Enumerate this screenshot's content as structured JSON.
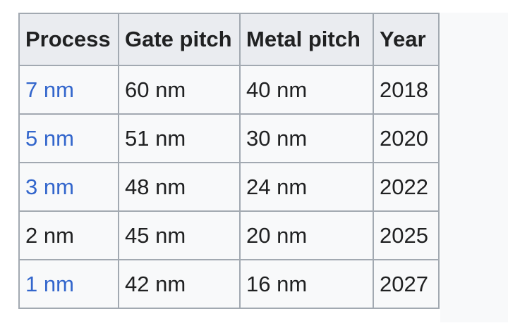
{
  "table": {
    "headers": {
      "process": "Process",
      "gate_pitch": "Gate pitch",
      "metal_pitch": "Metal pitch",
      "year": "Year"
    },
    "rows": [
      {
        "process": "7 nm",
        "process_is_link": true,
        "gate_pitch": "60 nm",
        "metal_pitch": "40 nm",
        "year": "2018"
      },
      {
        "process": "5 nm",
        "process_is_link": true,
        "gate_pitch": "51 nm",
        "metal_pitch": "30 nm",
        "year": "2020"
      },
      {
        "process": "3 nm",
        "process_is_link": true,
        "gate_pitch": "48 nm",
        "metal_pitch": "24 nm",
        "year": "2022"
      },
      {
        "process": "2 nm",
        "process_is_link": false,
        "gate_pitch": "45 nm",
        "metal_pitch": "20 nm",
        "year": "2025"
      },
      {
        "process": "1 nm",
        "process_is_link": true,
        "gate_pitch": "42 nm",
        "metal_pitch": "16 nm",
        "year": "2027"
      }
    ]
  },
  "colors": {
    "link": "#3366cc",
    "header_bg": "#eaecf0",
    "cell_bg": "#f8f9fa",
    "border": "#a2a9b1",
    "text": "#202122"
  }
}
